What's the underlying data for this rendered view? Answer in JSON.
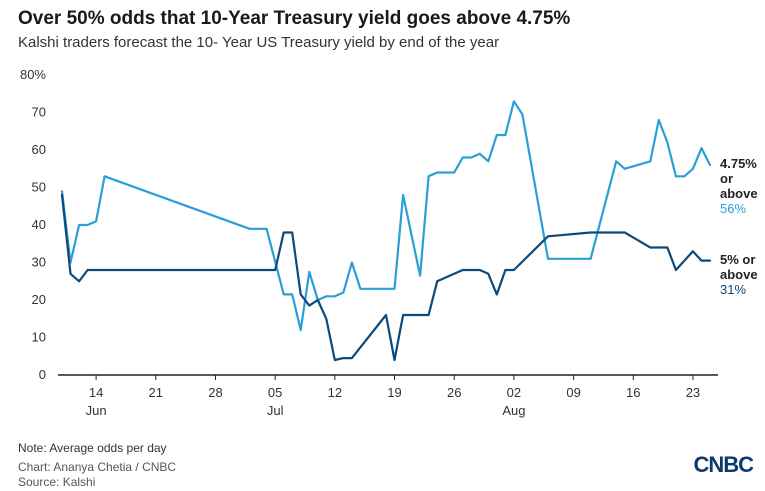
{
  "header": {
    "title": "Over 50% odds that 10-Year Treasury yield goes above 4.75%",
    "subtitle": "Kalshi traders forecast the 10- Year US Treasury yield by end of the year"
  },
  "footer": {
    "note": "Note: Average odds per day",
    "credit": "Chart: Ananya Chetia / CNBC",
    "source": "Source: Kalshi",
    "logo": "CNBC"
  },
  "colors": {
    "series_above_475": "#2a9fd6",
    "series_5_or_above": "#0b4a7a",
    "axis": "#222222"
  },
  "chart_data": {
    "type": "line",
    "ylim": [
      0,
      80
    ],
    "y_ticks": [
      "0",
      "10",
      "20",
      "30",
      "40",
      "50",
      "60",
      "70",
      "80%"
    ],
    "y_tick_values": [
      0,
      10,
      20,
      30,
      40,
      50,
      60,
      70,
      80
    ],
    "xlim": [
      "2024-06-10",
      "2024-08-25"
    ],
    "x_ticks": [
      {
        "day": "14",
        "month": "Jun",
        "date": "2024-06-14"
      },
      {
        "day": "21",
        "month": "",
        "date": "2024-06-21"
      },
      {
        "day": "28",
        "month": "",
        "date": "2024-06-28"
      },
      {
        "day": "05",
        "month": "Jul",
        "date": "2024-07-05"
      },
      {
        "day": "12",
        "month": "",
        "date": "2024-07-12"
      },
      {
        "day": "19",
        "month": "",
        "date": "2024-07-19"
      },
      {
        "day": "26",
        "month": "",
        "date": "2024-07-26"
      },
      {
        "day": "02",
        "month": "Aug",
        "date": "2024-08-02"
      },
      {
        "day": "09",
        "month": "",
        "date": "2024-08-09"
      },
      {
        "day": "16",
        "month": "",
        "date": "2024-08-16"
      },
      {
        "day": "23",
        "month": "",
        "date": "2024-08-23"
      }
    ],
    "series": [
      {
        "name": "4.75% or above",
        "label_lines": [
          "4.75%",
          "or",
          "above"
        ],
        "last_value_label": "56%",
        "points": [
          [
            "2024-06-10",
            49
          ],
          [
            "2024-06-11",
            30
          ],
          [
            "2024-06-12",
            40
          ],
          [
            "2024-06-13",
            40
          ],
          [
            "2024-06-14",
            41
          ],
          [
            "2024-06-15",
            53
          ],
          [
            "2024-07-02",
            39
          ],
          [
            "2024-07-04",
            39
          ],
          [
            "2024-07-06",
            21.5
          ],
          [
            "2024-07-07",
            21.5
          ],
          [
            "2024-07-08",
            12
          ],
          [
            "2024-07-09",
            27.5
          ],
          [
            "2024-07-10",
            20
          ],
          [
            "2024-07-11",
            21
          ],
          [
            "2024-07-12",
            21
          ],
          [
            "2024-07-13",
            22
          ],
          [
            "2024-07-14",
            30
          ],
          [
            "2024-07-15",
            23
          ],
          [
            "2024-07-19",
            23
          ],
          [
            "2024-07-20",
            48
          ],
          [
            "2024-07-22",
            26.5
          ],
          [
            "2024-07-23",
            53
          ],
          [
            "2024-07-24",
            54
          ],
          [
            "2024-07-26",
            54
          ],
          [
            "2024-07-27",
            58
          ],
          [
            "2024-07-28",
            58
          ],
          [
            "2024-07-29",
            59
          ],
          [
            "2024-07-30",
            57
          ],
          [
            "2024-07-31",
            64
          ],
          [
            "2024-08-01",
            64
          ],
          [
            "2024-08-02",
            73
          ],
          [
            "2024-08-03",
            69.5
          ],
          [
            "2024-08-06",
            31
          ],
          [
            "2024-08-11",
            31
          ],
          [
            "2024-08-14",
            57
          ],
          [
            "2024-08-15",
            55
          ],
          [
            "2024-08-18",
            57
          ],
          [
            "2024-08-19",
            68
          ],
          [
            "2024-08-20",
            62
          ],
          [
            "2024-08-21",
            53
          ],
          [
            "2024-08-22",
            53
          ],
          [
            "2024-08-23",
            55
          ],
          [
            "2024-08-24",
            60.5
          ],
          [
            "2024-08-25",
            56
          ]
        ]
      },
      {
        "name": "5% or above",
        "label_lines": [
          "5% or",
          "above"
        ],
        "last_value_label": "31%",
        "points": [
          [
            "2024-06-10",
            48
          ],
          [
            "2024-06-11",
            27
          ],
          [
            "2024-06-12",
            25
          ],
          [
            "2024-06-13",
            28
          ],
          [
            "2024-07-05",
            28
          ],
          [
            "2024-07-06",
            38
          ],
          [
            "2024-07-07",
            38
          ],
          [
            "2024-07-08",
            21.5
          ],
          [
            "2024-07-09",
            18.5
          ],
          [
            "2024-07-10",
            20
          ],
          [
            "2024-07-11",
            15
          ],
          [
            "2024-07-12",
            4
          ],
          [
            "2024-07-13",
            4.5
          ],
          [
            "2024-07-14",
            4.5
          ],
          [
            "2024-07-18",
            16
          ],
          [
            "2024-07-19",
            4
          ],
          [
            "2024-07-20",
            16
          ],
          [
            "2024-07-23",
            16
          ],
          [
            "2024-07-24",
            25
          ],
          [
            "2024-07-27",
            28
          ],
          [
            "2024-07-29",
            28
          ],
          [
            "2024-07-30",
            27
          ],
          [
            "2024-07-31",
            21.5
          ],
          [
            "2024-08-01",
            28
          ],
          [
            "2024-08-02",
            28
          ],
          [
            "2024-08-06",
            37
          ],
          [
            "2024-08-11",
            38
          ],
          [
            "2024-08-15",
            38
          ],
          [
            "2024-08-18",
            34
          ],
          [
            "2024-08-20",
            34
          ],
          [
            "2024-08-21",
            28
          ],
          [
            "2024-08-23",
            33
          ],
          [
            "2024-08-24",
            30.5
          ],
          [
            "2024-08-25",
            30.5
          ]
        ]
      }
    ]
  }
}
